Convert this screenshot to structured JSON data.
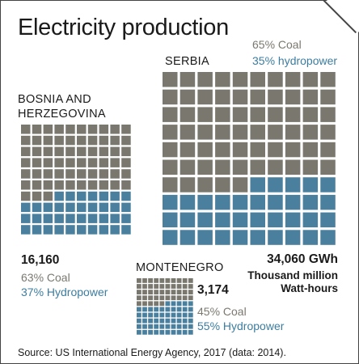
{
  "title": "Electricity production",
  "colors": {
    "coal": "#7a786e",
    "hydropower": "#4a809e",
    "hydro_text": "#3c7da0",
    "coal_text": "#7a786f"
  },
  "chart_data": {
    "type": "waffle",
    "title": "Electricity production",
    "unit_label": "Thousand million Watt-hours",
    "countries": [
      {
        "id": "serbia",
        "name": "SERBIA",
        "total": "34,060 GWh",
        "total_value": 34060,
        "coal_label": "65% Coal",
        "hydro_label": "35% hydropower",
        "coal_pct": 65,
        "hydro_pct": 35
      },
      {
        "id": "bosnia",
        "name_line1": "BOSNIA AND",
        "name_line2": "HERZEGOVINA",
        "total": "16,160",
        "total_value": 16160,
        "coal_label": "63% Coal",
        "hydro_label": "37% Hydropower",
        "coal_pct": 63,
        "hydro_pct": 37
      },
      {
        "id": "montenegro",
        "name": "MONTENEGRO",
        "total": "3,174",
        "total_value": 3174,
        "coal_label": "45% Coal",
        "hydro_label": "55% Hydropower",
        "coal_pct": 45,
        "hydro_pct": 55
      }
    ],
    "unit_line1": "Thousand million",
    "unit_line2": "Watt-hours"
  },
  "source": "Source: US International Energy Agency, 2017 (data: 2014)."
}
